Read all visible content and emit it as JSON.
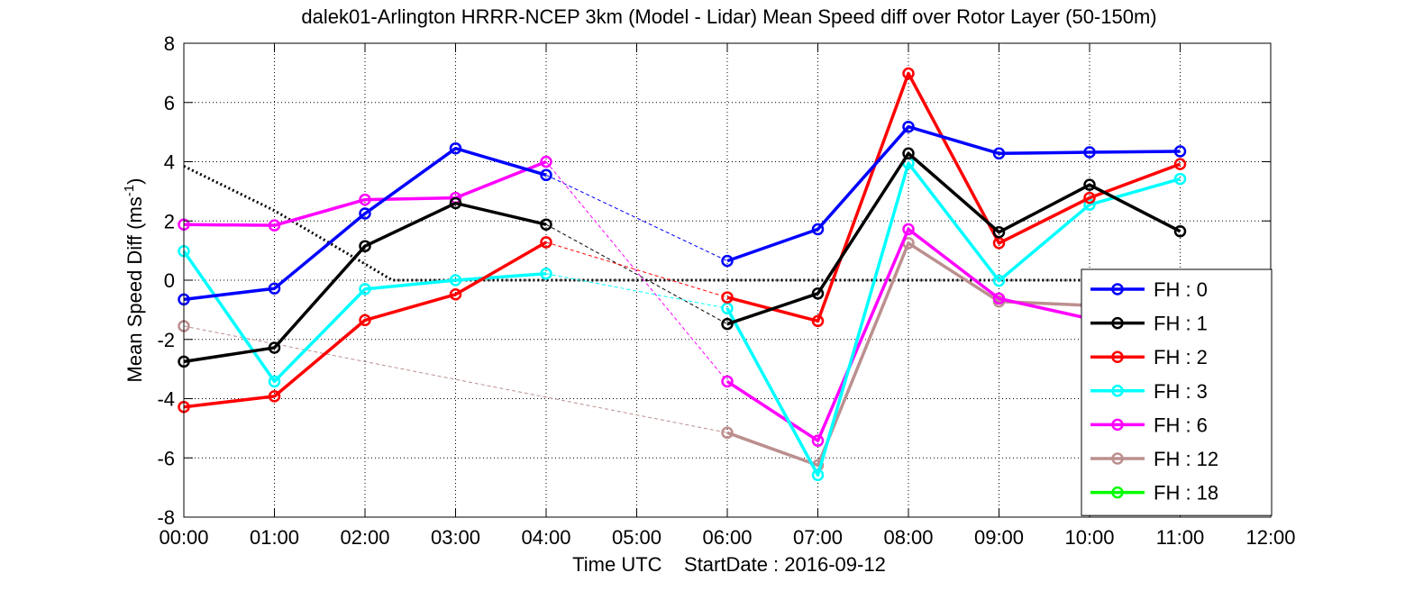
{
  "chart_data": {
    "type": "line",
    "title": "dalek01-Arlington HRRR-NCEP 3km (Model - Lidar) Mean Speed diff over Rotor Layer (50-150m)",
    "xlabel": "Time UTC    StartDate : 2016-09-12",
    "ylabel_main": "Mean Speed Diff (ms",
    "ylabel_sup": "-1",
    "ylabel_close": ")",
    "x_tick_labels": [
      "00:00",
      "01:00",
      "02:00",
      "03:00",
      "04:00",
      "05:00",
      "06:00",
      "07:00",
      "08:00",
      "09:00",
      "10:00",
      "11:00",
      "12:00"
    ],
    "xlim": [
      0,
      12
    ],
    "ylim": [
      -8,
      8
    ],
    "y_ticks": [
      -8,
      -6,
      -4,
      -2,
      0,
      2,
      4,
      6,
      8
    ],
    "grid": true,
    "legend_position": "bottom-right",
    "series": [
      {
        "name": "FH : 0",
        "color": "#0000ff",
        "segments": [
          [
            [
              0,
              -0.65
            ],
            [
              1,
              -0.28
            ],
            [
              2,
              2.25
            ],
            [
              3,
              4.45
            ],
            [
              4,
              3.55
            ]
          ],
          [
            [
              6,
              0.65
            ],
            [
              7,
              1.72
            ],
            [
              8,
              5.18
            ],
            [
              9,
              4.28
            ],
            [
              10,
              4.32
            ],
            [
              11,
              4.35
            ]
          ]
        ],
        "gap_links": [
          [
            [
              4,
              3.55
            ],
            [
              6,
              0.65
            ]
          ]
        ]
      },
      {
        "name": "FH : 1",
        "color": "#000000",
        "segments": [
          [
            [
              0,
              -2.75
            ],
            [
              1,
              -2.28
            ],
            [
              2,
              1.15
            ],
            [
              3,
              2.6
            ],
            [
              4,
              1.88
            ]
          ],
          [
            [
              6,
              -1.48
            ],
            [
              7,
              -0.45
            ],
            [
              8,
              4.28
            ],
            [
              9,
              1.62
            ],
            [
              10,
              3.22
            ],
            [
              11,
              1.65
            ]
          ]
        ],
        "gap_links": [
          [
            [
              4,
              1.88
            ],
            [
              6,
              -1.48
            ]
          ]
        ]
      },
      {
        "name": "FH : 2",
        "color": "#ff0000",
        "segments": [
          [
            [
              0,
              -4.28
            ],
            [
              1,
              -3.92
            ],
            [
              2,
              -1.35
            ],
            [
              3,
              -0.48
            ],
            [
              4,
              1.28
            ]
          ],
          [
            [
              6,
              -0.58
            ],
            [
              7,
              -1.38
            ],
            [
              8,
              6.98
            ],
            [
              9,
              1.25
            ],
            [
              10,
              2.78
            ],
            [
              11,
              3.92
            ]
          ]
        ],
        "gap_links": [
          [
            [
              4,
              1.28
            ],
            [
              6,
              -0.58
            ]
          ]
        ]
      },
      {
        "name": "FH : 3",
        "color": "#00ffff",
        "segments": [
          [
            [
              0,
              0.98
            ],
            [
              1,
              -3.42
            ],
            [
              2,
              -0.3
            ],
            [
              3,
              0.0
            ],
            [
              4,
              0.22
            ]
          ],
          [
            [
              6,
              -0.95
            ],
            [
              7,
              -6.58
            ],
            [
              8,
              3.95
            ],
            [
              9,
              -0.02
            ],
            [
              10,
              2.55
            ],
            [
              11,
              3.42
            ]
          ]
        ],
        "gap_links": [
          [
            [
              4,
              0.22
            ],
            [
              6,
              -0.95
            ]
          ]
        ]
      },
      {
        "name": "FH : 6",
        "color": "#ff00ff",
        "segments": [
          [
            [
              0,
              1.88
            ],
            [
              1,
              1.85
            ],
            [
              2,
              2.72
            ],
            [
              3,
              2.78
            ],
            [
              4,
              4.0
            ]
          ],
          [
            [
              6,
              -3.42
            ],
            [
              7,
              -5.42
            ],
            [
              8,
              1.72
            ],
            [
              9,
              -0.62
            ],
            [
              10,
              -1.3
            ]
          ]
        ],
        "gap_links": [
          [
            [
              4,
              4.0
            ],
            [
              6,
              -3.42
            ]
          ]
        ]
      },
      {
        "name": "FH : 12",
        "color": "#bc8f8f",
        "segments": [
          [
            [
              0,
              -1.55
            ]
          ],
          [
            [
              6,
              -5.15
            ],
            [
              7,
              -6.25
            ],
            [
              8,
              1.25
            ],
            [
              9,
              -0.72
            ],
            [
              10,
              -0.85
            ]
          ]
        ],
        "gap_links": [
          [
            [
              0,
              -1.55
            ],
            [
              6,
              -5.15
            ]
          ]
        ]
      },
      {
        "name": "FH : 18",
        "color": "#00ff00",
        "segments": [],
        "gap_links": []
      }
    ],
    "reference_line": {
      "color": "#000000",
      "points": [
        [
          0,
          3.85
        ],
        [
          1,
          2.35
        ],
        [
          2,
          0.55
        ],
        [
          2.3,
          0
        ],
        [
          12,
          0
        ]
      ]
    }
  }
}
